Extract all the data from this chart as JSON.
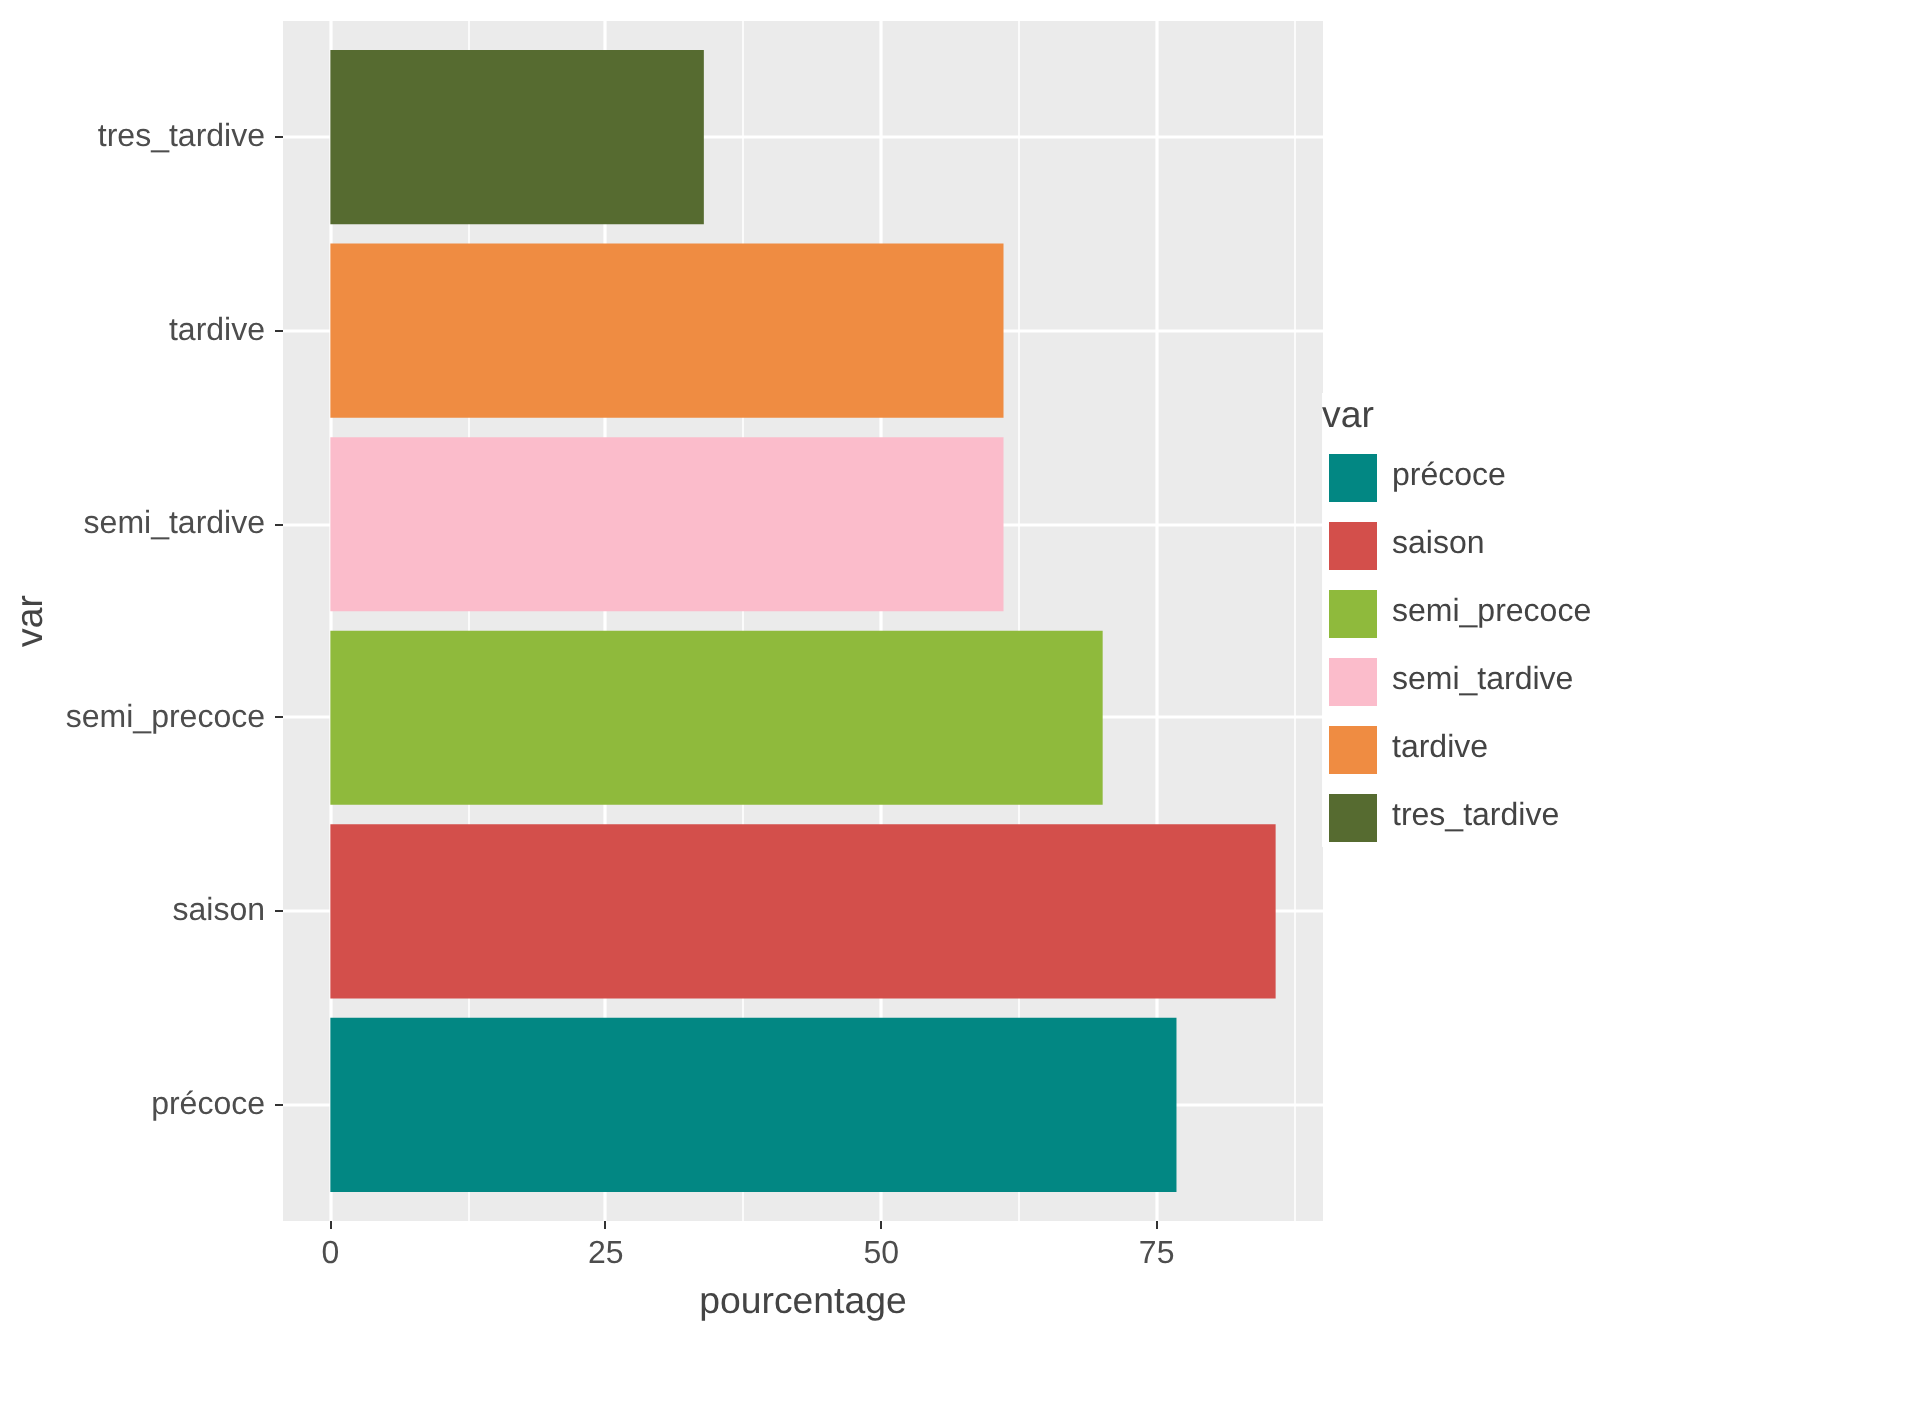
{
  "chart_data": {
    "type": "bar",
    "orientation": "horizontal",
    "stacked": true,
    "xlabel": "pourcentage",
    "ylabel": "var",
    "legend_title": "var",
    "categories": [
      "tres_tardive",
      "tardive",
      "semi_tardive",
      "semi_precoce",
      "saison",
      "précoce"
    ],
    "series": [
      {
        "name": "précoce",
        "color": "#028783",
        "values": [
          null,
          null,
          null,
          null,
          null,
          76.8
        ]
      },
      {
        "name": "saison",
        "color": "#d34f4b",
        "values": [
          null,
          null,
          null,
          null,
          85.8,
          null
        ]
      },
      {
        "name": "semi_precoce",
        "color": "#8fba3c",
        "values": [
          null,
          null,
          null,
          70.1,
          null,
          null
        ]
      },
      {
        "name": "semi_tardive",
        "color": "#fbbccb",
        "values": [
          null,
          null,
          61.1,
          null,
          null,
          null
        ]
      },
      {
        "name": "tardive",
        "color": "#ef8c42",
        "values": [
          null,
          61.1,
          null,
          null,
          null,
          null
        ]
      },
      {
        "name": "tres_tardive",
        "color": "#566b30",
        "values": [
          33.9,
          null,
          null,
          null,
          null,
          null
        ]
      }
    ],
    "xlim": [
      -4.3,
      90.1
    ],
    "xticks": [
      0,
      25,
      50,
      75
    ],
    "grid": true,
    "legend": "right"
  }
}
